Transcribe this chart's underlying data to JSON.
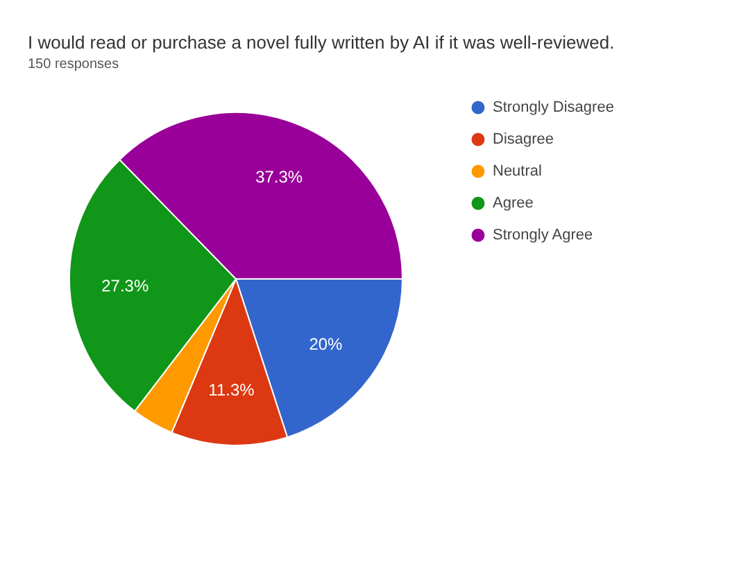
{
  "chart_data": {
    "type": "pie",
    "title": "I would read or purchase a novel fully written by AI if it was well-reviewed.",
    "subtitle": "150 responses",
    "categories": [
      "Strongly Disagree",
      "Disagree",
      "Neutral",
      "Agree",
      "Strongly Agree"
    ],
    "values": [
      20,
      11.3,
      4.1,
      27.3,
      37.3
    ],
    "colors": [
      "#3366cc",
      "#dc3912",
      "#ff9900",
      "#109618",
      "#990099"
    ],
    "value_labels": [
      "20%",
      "11.3%",
      null,
      "27.3%",
      "37.3%"
    ],
    "legend": "right"
  }
}
